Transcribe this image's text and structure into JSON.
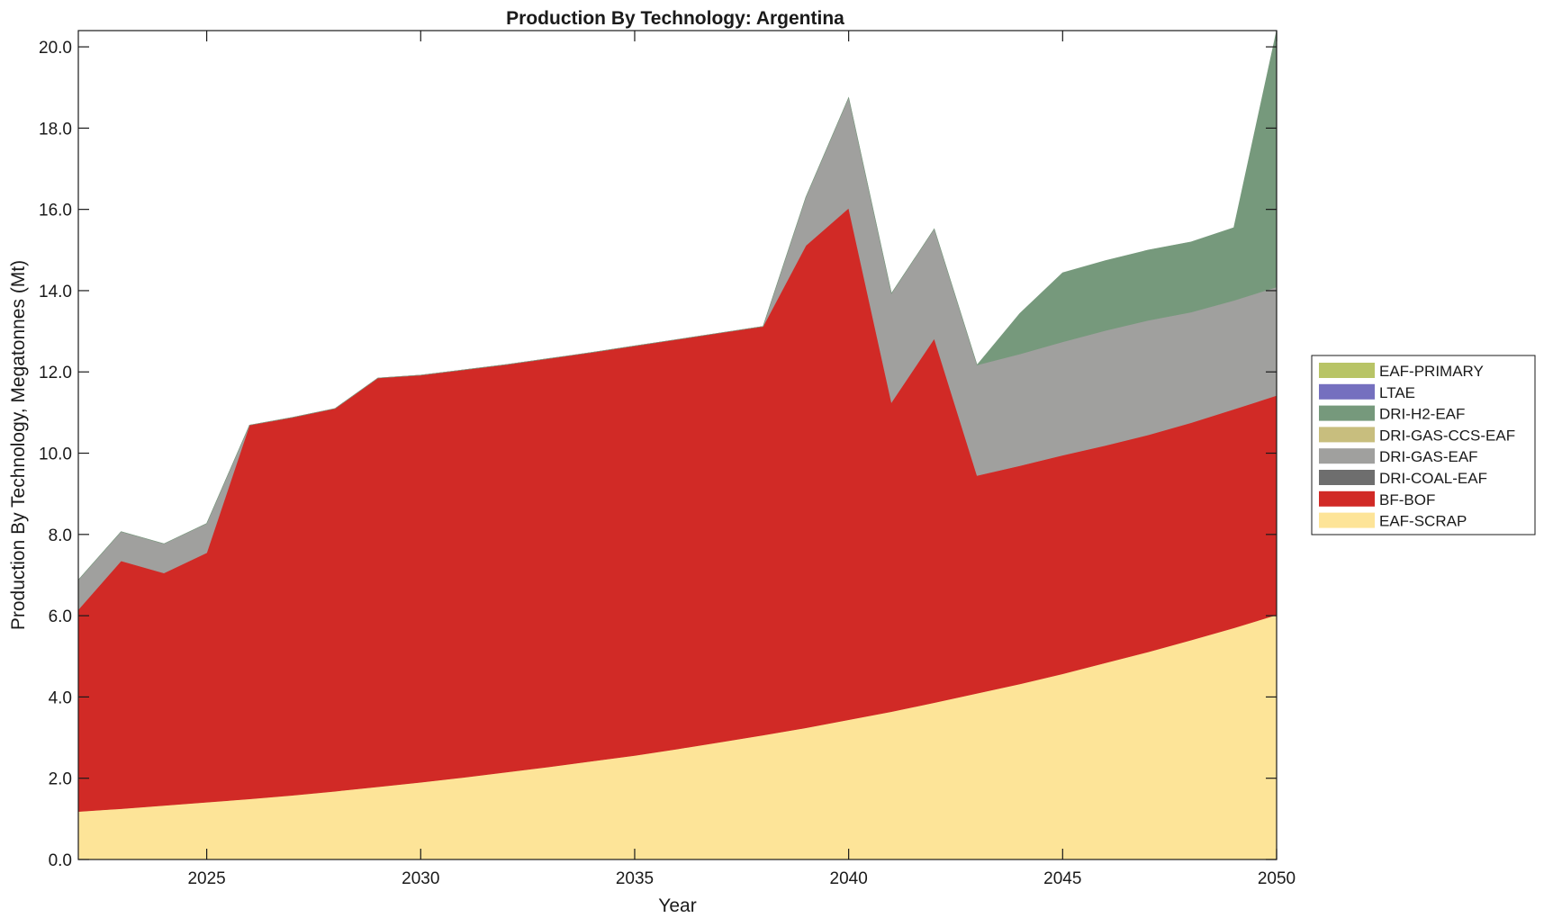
{
  "chart_data": {
    "type": "area",
    "stacked": true,
    "title": "Production By Technology: Argentina",
    "xlabel": "Year",
    "ylabel": "Production By Technology, Megatonnes (Mt)",
    "xlim": [
      2022,
      2050
    ],
    "ylim": [
      0,
      20.4
    ],
    "xticks": [
      2025,
      2030,
      2035,
      2040,
      2045,
      2050
    ],
    "yticks": [
      0,
      2,
      4,
      6,
      8,
      10,
      12,
      14,
      16,
      18,
      20
    ],
    "ytick_labels": [
      "0.0",
      "2.0",
      "4.0",
      "6.0",
      "8.0",
      "10.0",
      "12.0",
      "14.0",
      "16.0",
      "18.0",
      "20.0"
    ],
    "legend_position": "right",
    "x": [
      2022,
      2023,
      2024,
      2025,
      2026,
      2027,
      2028,
      2029,
      2030,
      2031,
      2032,
      2033,
      2034,
      2035,
      2036,
      2037,
      2038,
      2039,
      2040,
      2041,
      2042,
      2043,
      2044,
      2045,
      2046,
      2047,
      2048,
      2049,
      2050
    ],
    "series": [
      {
        "name": "EAF-SCRAP",
        "color": "#FDE498",
        "values": [
          1.18,
          1.25,
          1.33,
          1.41,
          1.49,
          1.58,
          1.68,
          1.79,
          1.9,
          2.02,
          2.15,
          2.28,
          2.42,
          2.56,
          2.72,
          2.89,
          3.06,
          3.24,
          3.44,
          3.64,
          3.86,
          4.09,
          4.32,
          4.57,
          4.84,
          5.11,
          5.4,
          5.7,
          6.02
        ]
      },
      {
        "name": "BF-BOF",
        "color": "#D12A26",
        "values": [
          4.97,
          6.1,
          5.72,
          6.14,
          9.2,
          9.3,
          9.42,
          10.06,
          10.02,
          10.03,
          10.03,
          10.05,
          10.06,
          10.08,
          10.08,
          10.07,
          10.06,
          11.87,
          12.59,
          7.61,
          8.96,
          5.36,
          5.37,
          5.38,
          5.35,
          5.34,
          5.35,
          5.38,
          5.4
        ]
      },
      {
        "name": "DRI-COAL-EAF",
        "color": "#6E6E6E",
        "values": [
          0,
          0,
          0,
          0,
          0,
          0,
          0,
          0,
          0,
          0,
          0,
          0,
          0,
          0,
          0,
          0,
          0,
          0,
          0,
          0,
          0,
          0,
          0,
          0,
          0,
          0,
          0,
          0,
          0
        ]
      },
      {
        "name": "DRI-GAS-EAF",
        "color": "#A0A09E",
        "values": [
          0.73,
          0.72,
          0.72,
          0.72,
          0.0,
          0,
          0,
          0,
          0,
          0,
          0,
          0,
          0,
          0,
          0,
          0,
          0,
          1.19,
          2.72,
          2.68,
          2.7,
          2.72,
          2.75,
          2.79,
          2.83,
          2.82,
          2.72,
          2.68,
          2.67
        ]
      },
      {
        "name": "DRI-GAS-CCS-EAF",
        "color": "#C8BE7E",
        "values": [
          0,
          0,
          0,
          0,
          0,
          0,
          0,
          0,
          0,
          0,
          0,
          0,
          0,
          0,
          0,
          0,
          0,
          0,
          0,
          0,
          0,
          0,
          0,
          0,
          0,
          0,
          0,
          0,
          0
        ]
      },
      {
        "name": "DRI-H2-EAF",
        "color": "#76997C",
        "values": [
          0,
          0,
          0,
          0,
          0,
          0,
          0,
          0,
          0,
          0,
          0,
          0,
          0,
          0,
          0,
          0,
          0,
          0,
          0,
          0,
          0,
          0,
          1.0,
          1.7,
          1.72,
          1.73,
          1.73,
          1.79,
          6.31
        ]
      },
      {
        "name": "LTAE",
        "color": "#7570BF",
        "values": [
          0,
          0,
          0,
          0,
          0,
          0,
          0,
          0,
          0,
          0,
          0,
          0,
          0,
          0,
          0,
          0,
          0,
          0,
          0,
          0,
          0,
          0,
          0,
          0,
          0,
          0,
          0,
          0,
          0
        ]
      },
      {
        "name": "EAF-PRIMARY",
        "color": "#B8C466",
        "values": [
          0,
          0,
          0,
          0,
          0,
          0,
          0,
          0,
          0,
          0,
          0,
          0,
          0,
          0,
          0,
          0,
          0,
          0,
          0,
          0,
          0,
          0,
          0,
          0,
          0,
          0,
          0,
          0,
          0
        ]
      }
    ],
    "legend_order": [
      "EAF-PRIMARY",
      "LTAE",
      "DRI-H2-EAF",
      "DRI-GAS-CCS-EAF",
      "DRI-GAS-EAF",
      "DRI-COAL-EAF",
      "BF-BOF",
      "EAF-SCRAP"
    ]
  }
}
